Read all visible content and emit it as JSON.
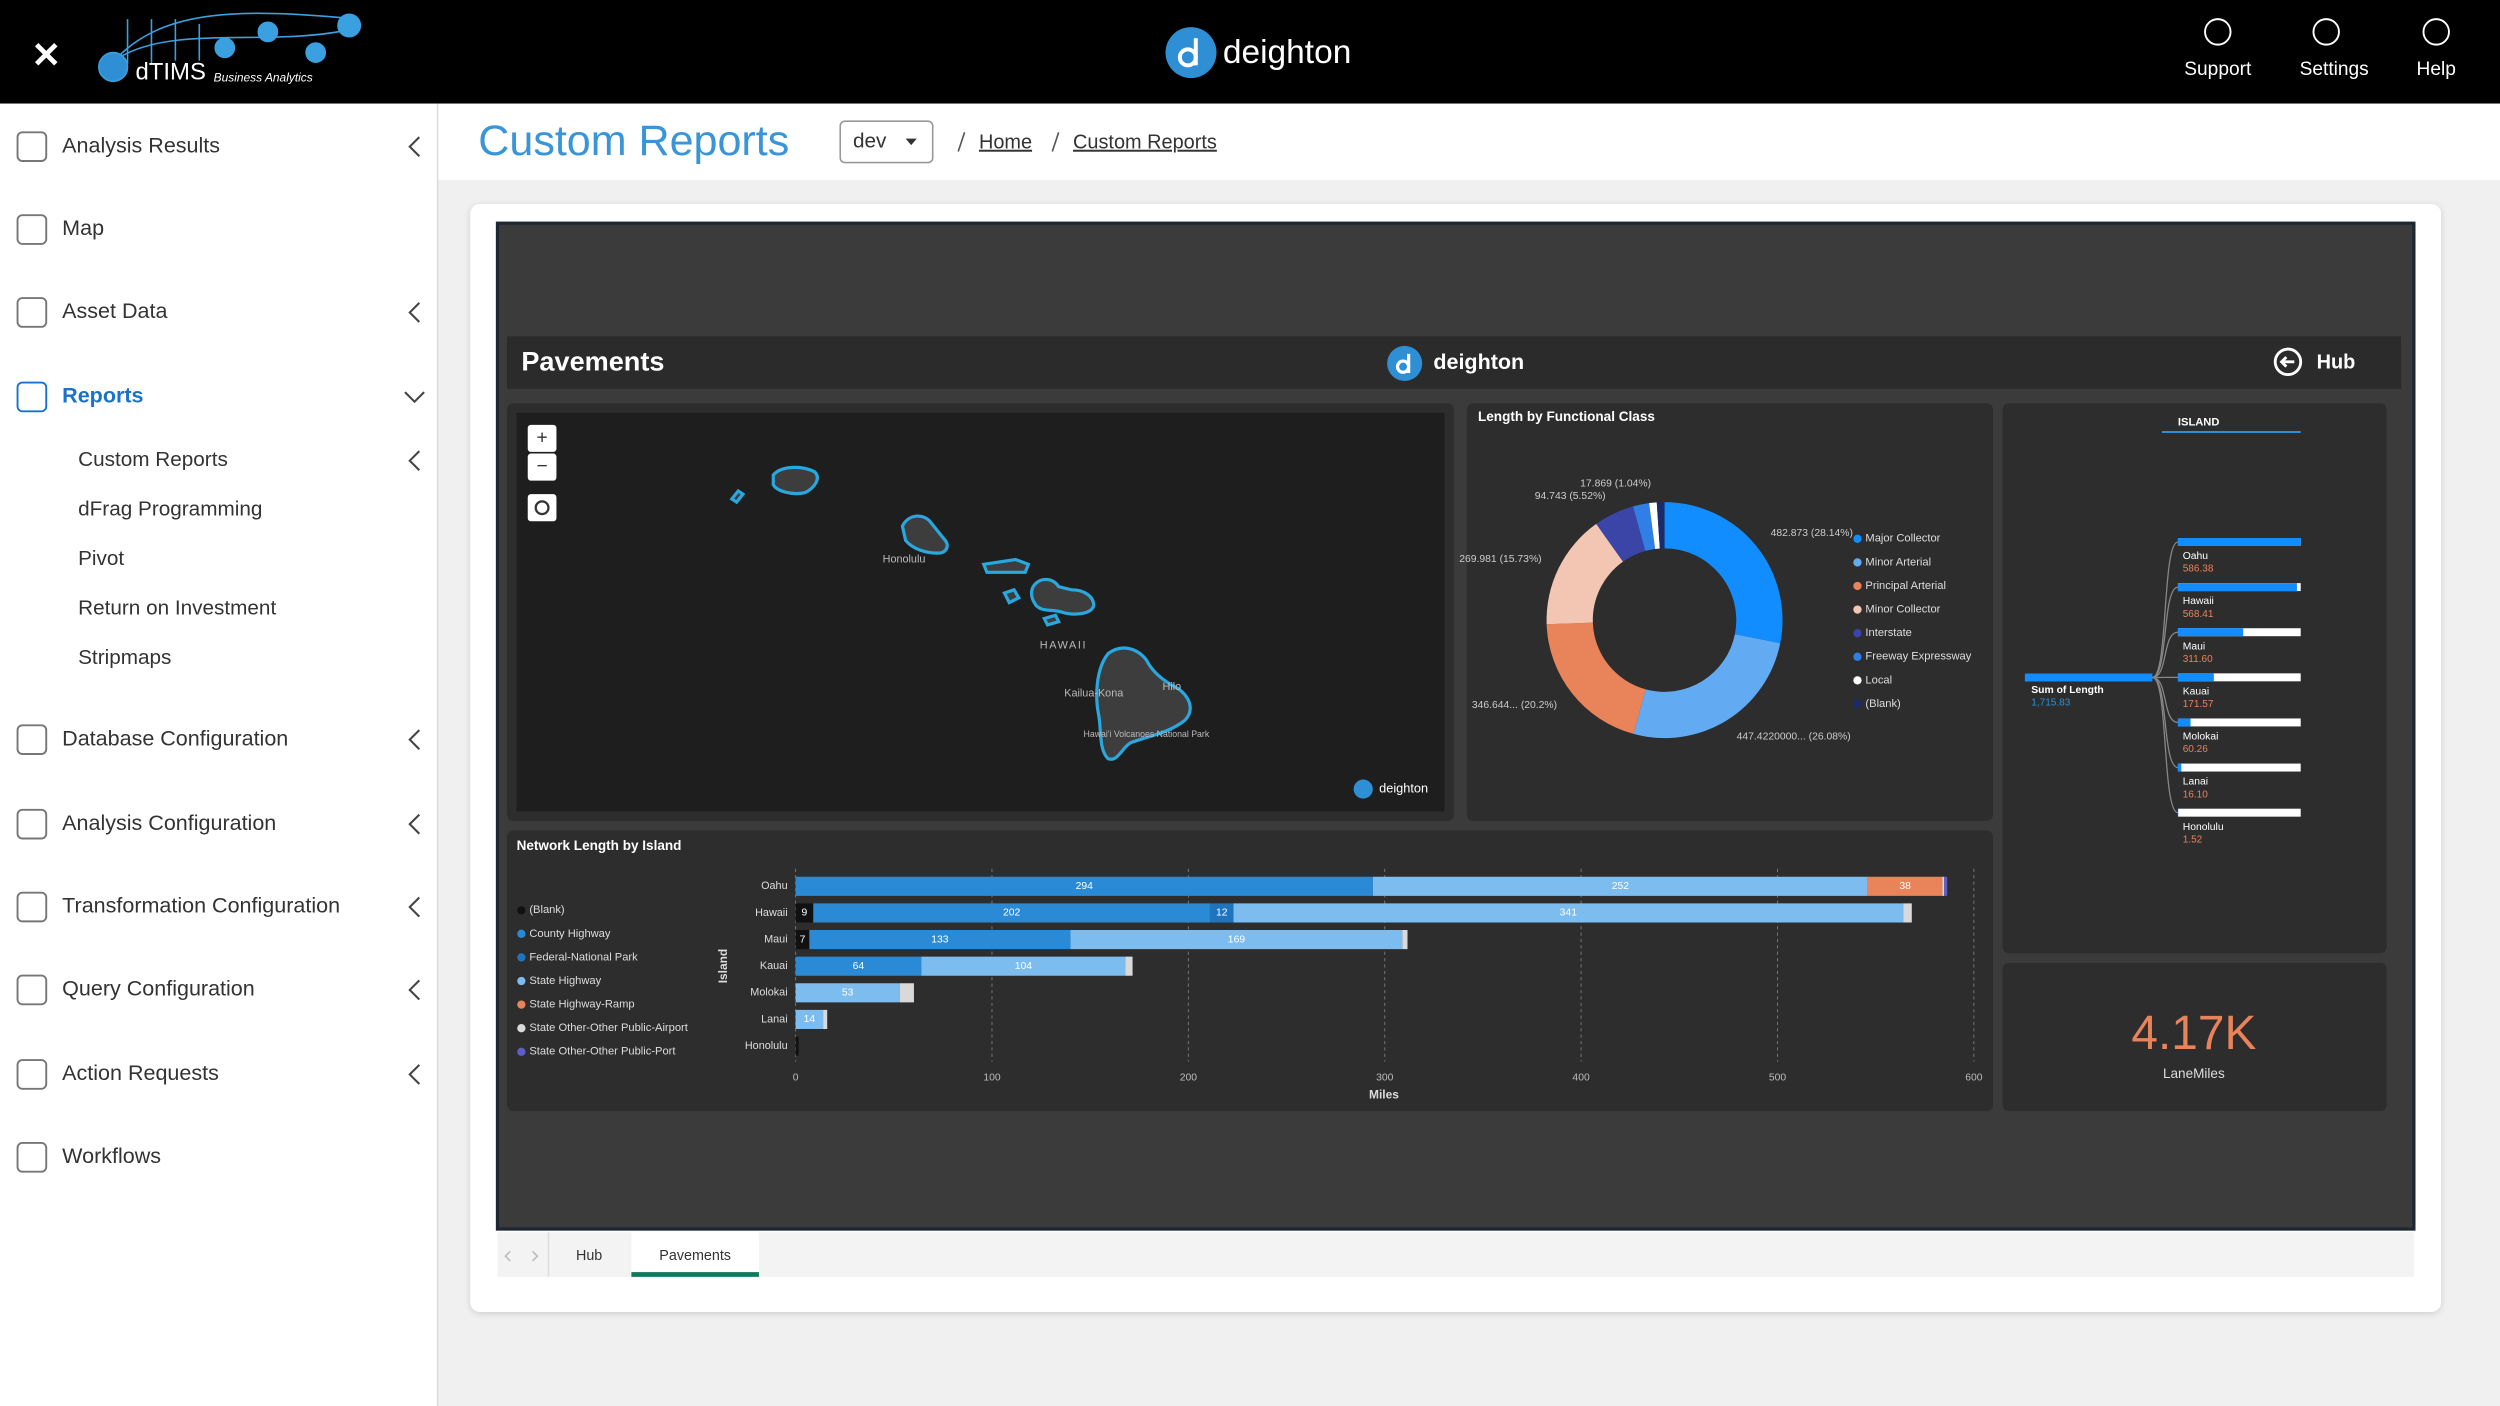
{
  "header": {
    "brand": "dTIMS",
    "brand_tagline": "Business Analytics",
    "logo": "deighton",
    "actions": [
      "Support",
      "Settings",
      "Help"
    ]
  },
  "sidebar": {
    "items": [
      {
        "label": "Analysis Results",
        "expandable": true
      },
      {
        "label": "Map",
        "expandable": false
      },
      {
        "label": "Asset Data",
        "expandable": true
      },
      {
        "label": "Reports",
        "expandable": true,
        "expanded": true,
        "active": true,
        "children": [
          {
            "label": "Custom Reports",
            "expandable": true
          },
          {
            "label": "dFrag Programming",
            "expandable": false
          },
          {
            "label": "Pivot",
            "expandable": false
          },
          {
            "label": "Return on Investment",
            "expandable": false
          },
          {
            "label": "Stripmaps",
            "expandable": false
          }
        ]
      },
      {
        "label": "Database Configuration",
        "expandable": true
      },
      {
        "label": "Analysis Configuration",
        "expandable": true
      },
      {
        "label": "Transformation Configuration",
        "expandable": true
      },
      {
        "label": "Query Configuration",
        "expandable": true
      },
      {
        "label": "Action Requests",
        "expandable": true
      },
      {
        "label": "Workflows",
        "expandable": false
      }
    ]
  },
  "page": {
    "title": "Custom Reports",
    "environment": "dev",
    "breadcrumbs": [
      "Home",
      "Custom Reports"
    ]
  },
  "report": {
    "title": "Pavements",
    "logo": "deighton",
    "nav_button": "Hub",
    "map": {
      "zoom": [
        "+",
        "−"
      ],
      "labels": [
        "Honolulu",
        "HAWAII",
        "Kailua-Kona",
        "Hilo",
        "Hawai'i Volcanoes National Park"
      ],
      "watermark": "deighton"
    },
    "functional_class": {
      "type": "donut",
      "title": "Length by Functional Class",
      "categories": [
        "Major Collector",
        "Minor Arterial",
        "Principal Arterial",
        "Minor Collector",
        "Interstate",
        "Freeway Expressway",
        "Local",
        "(Blank)"
      ],
      "values": [
        482.873,
        447.422,
        346.644,
        269.981,
        94.743,
        38,
        17.869,
        18
      ],
      "value_labels": [
        "482.873 (28.14%)",
        "447.4220000... (26.08%)",
        "346.644... (20.2%)",
        "269.981 (15.73%)",
        "94.743 (5.52%)",
        null,
        "17.869 (1.04%)",
        null
      ],
      "colors": [
        "#118dff",
        "#62abf3",
        "#e8835a",
        "#f2c6b2",
        "#3b45a8",
        "#2f7fe6",
        "#ffffff",
        "#1b2a6b"
      ]
    },
    "network_length": {
      "type": "bar",
      "orientation": "horizontal",
      "stacked": true,
      "title": "Network Length by Island",
      "categories": [
        "Oahu",
        "Hawaii",
        "Maui",
        "Kauai",
        "Molokai",
        "Lanai",
        "Honolulu"
      ],
      "series": [
        {
          "name": "(Blank)",
          "color": "#111111",
          "values": [
            null,
            9,
            7,
            null,
            null,
            null,
            1.52
          ],
          "value_labels": [
            null,
            "9",
            "7",
            null,
            null,
            null,
            null
          ]
        },
        {
          "name": "County Highway",
          "color": "#2a8ad6",
          "values": [
            294,
            202,
            133,
            64,
            null,
            null,
            null
          ],
          "value_labels": [
            "294",
            "202",
            "133",
            "64",
            null,
            null,
            null
          ]
        },
        {
          "name": "Federal-National Park",
          "color": "#1f74c0",
          "values": [
            null,
            12,
            null,
            null,
            null,
            null,
            null
          ],
          "value_labels": [
            null,
            "12",
            null,
            null,
            null,
            null,
            null
          ]
        },
        {
          "name": "State Highway",
          "color": "#7cbcef",
          "values": [
            252,
            341,
            169,
            104,
            53,
            14,
            null
          ],
          "value_labels": [
            "252",
            "341",
            "169",
            "104",
            "53",
            "14",
            null
          ]
        },
        {
          "name": "State Highway-Ramp",
          "color": "#e8835a",
          "values": [
            38,
            null,
            null,
            null,
            null,
            null,
            null
          ],
          "value_labels": [
            "38",
            null,
            null,
            null,
            null,
            null,
            null
          ]
        },
        {
          "name": "State Other-Other Public-Airport",
          "color": "#d9d9d9",
          "values": [
            0.9,
            4.4,
            2.6,
            3.6,
            7.26,
            2.1,
            null
          ],
          "value_labels": [
            null,
            null,
            null,
            null,
            null,
            null,
            null
          ]
        },
        {
          "name": "State Other-Other Public-Port",
          "color": "#5e5ec9",
          "values": [
            1.5,
            null,
            null,
            null,
            null,
            null,
            null
          ],
          "value_labels": [
            null,
            null,
            null,
            null,
            null,
            null,
            null
          ]
        }
      ],
      "xlim": [
        0,
        600
      ],
      "xticks": [
        0,
        100,
        200,
        300,
        400,
        500,
        600
      ],
      "xlabel": "Miles",
      "ylabel": "Island",
      "grid": true
    },
    "decomposition": {
      "header": "ISLAND",
      "measure": "Sum of Length",
      "total": {
        "value": 1715.83,
        "label": "1,715.83"
      },
      "categories": [
        "Oahu",
        "Hawaii",
        "Maui",
        "Kauai",
        "Molokai",
        "Lanai",
        "Honolulu"
      ],
      "values": [
        586.38,
        568.41,
        311.6,
        171.57,
        60.26,
        16.1,
        1.52
      ],
      "value_labels": [
        "586.38",
        "568.41",
        "311.60",
        "171.57",
        "60.26",
        "16.10",
        "1.52"
      ]
    },
    "kpi": {
      "value": 4170,
      "value_label": "4.17K",
      "label": "LaneMiles"
    }
  },
  "tabs": {
    "items": [
      "Hub",
      "Pavements"
    ],
    "active": 1
  }
}
